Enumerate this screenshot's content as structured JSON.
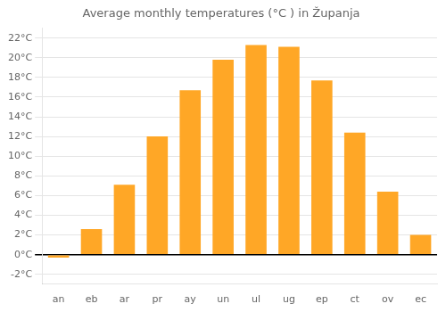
{
  "chart_data": {
    "type": "bar",
    "title": "Average monthly temperatures (°C ) in Županja",
    "categories": [
      "an",
      "eb",
      "ar",
      "pr",
      "ay",
      "un",
      "ul",
      "ug",
      "ep",
      "ct",
      "ov",
      "ec"
    ],
    "values": [
      -0.3,
      2.6,
      7.1,
      12.0,
      16.7,
      19.8,
      21.3,
      21.1,
      17.7,
      12.4,
      6.4,
      2.0
    ],
    "color": "#FFA726",
    "ylim": [
      -3,
      23
    ],
    "yticks": [
      {
        "value": -2,
        "label": "-2°C"
      },
      {
        "value": 0,
        "label": "0°C"
      },
      {
        "value": 2,
        "label": "2°C"
      },
      {
        "value": 4,
        "label": "4°C"
      },
      {
        "value": 6,
        "label": "6°C"
      },
      {
        "value": 8,
        "label": "8°C"
      },
      {
        "value": 10,
        "label": "10°C"
      },
      {
        "value": 12,
        "label": "12°C"
      },
      {
        "value": 14,
        "label": "14°C"
      },
      {
        "value": 16,
        "label": "16°C"
      },
      {
        "value": 18,
        "label": "18°C"
      },
      {
        "value": 20,
        "label": "20°C"
      },
      {
        "value": 22,
        "label": "22°C"
      }
    ],
    "grid": true
  }
}
